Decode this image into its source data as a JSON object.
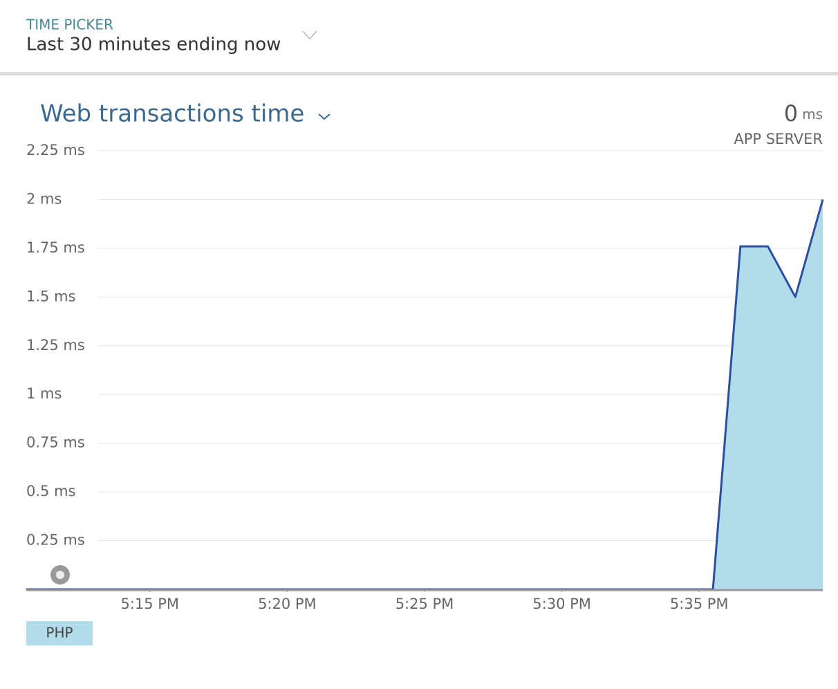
{
  "header": {
    "label": "TIME PICKER",
    "value": "Last 30 minutes ending now"
  },
  "chart_data": {
    "type": "area",
    "title": "Web transactions time",
    "summary": {
      "value": 0,
      "unit": "ms",
      "label": "APP SERVER"
    },
    "x": [
      10.5,
      11.5,
      12.5,
      13.5,
      14.5,
      15.5,
      16.5,
      17.5,
      18.5,
      19.5,
      20.5,
      21.5,
      22.5,
      23.5,
      24.5,
      25.5,
      26.5,
      27.5,
      28.5,
      29.5,
      30.5,
      31.5,
      32.5,
      33.5,
      34.5,
      35.5,
      36.5,
      37.5,
      38.5,
      39.5
    ],
    "series": [
      {
        "name": "PHP",
        "color": "#2a4fa0",
        "fill": "#b3dcea",
        "values": [
          0,
          0,
          0,
          0,
          0,
          0,
          0,
          0,
          0,
          0,
          0,
          0,
          0,
          0,
          0,
          0,
          0,
          0,
          0,
          0,
          0,
          0,
          0,
          0,
          0,
          0,
          1.76,
          1.76,
          1.5,
          2.0
        ]
      }
    ],
    "xlim": [
      10.5,
      39.5
    ],
    "xticks": [
      {
        "value": 15,
        "label": "5:15 PM"
      },
      {
        "value": 20,
        "label": "5:20 PM"
      },
      {
        "value": 25,
        "label": "5:25 PM"
      },
      {
        "value": 30,
        "label": "5:30 PM"
      },
      {
        "value": 35,
        "label": "5:35 PM"
      }
    ],
    "ylim": [
      0,
      2.25
    ],
    "yticks": [
      {
        "value": 0.25,
        "label": "0.25 ms"
      },
      {
        "value": 0.5,
        "label": "0.5 ms"
      },
      {
        "value": 0.75,
        "label": "0.75 ms"
      },
      {
        "value": 1,
        "label": "1 ms"
      },
      {
        "value": 1.25,
        "label": "1.25 ms"
      },
      {
        "value": 1.5,
        "label": "1.5 ms"
      },
      {
        "value": 1.75,
        "label": "1.75 ms"
      },
      {
        "value": 2,
        "label": "2 ms"
      },
      {
        "value": 2.25,
        "label": "2.25 ms"
      }
    ],
    "grid": true
  }
}
